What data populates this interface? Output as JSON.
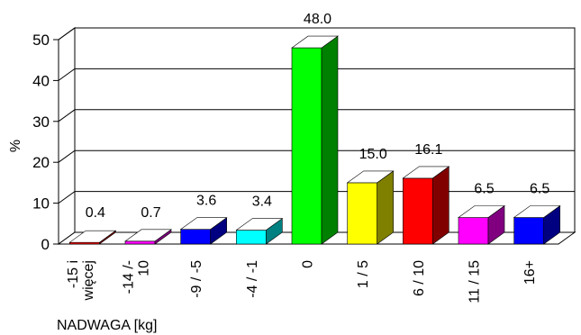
{
  "chart_data": {
    "type": "bar",
    "xlabel": "NADWAGA [kg]",
    "ylabel": "%",
    "ylim": [
      0,
      50
    ],
    "yticks": [
      "0",
      "10",
      "20",
      "30",
      "40",
      "50"
    ],
    "grid": true,
    "categories": [
      [
        "-15 i",
        "więcej"
      ],
      [
        "-14 /-",
        "10"
      ],
      [
        "-9 / -5"
      ],
      [
        "-4 / -1"
      ],
      [
        "0"
      ],
      [
        "1 / 5"
      ],
      [
        "6 / 10"
      ],
      [
        "11 / 15"
      ],
      [
        "16+"
      ]
    ],
    "values": [
      0.4,
      0.7,
      3.6,
      3.4,
      48.0,
      15.0,
      16.1,
      6.5,
      6.5
    ],
    "value_labels": [
      "0.4",
      "0.7",
      "3.6",
      "3.4",
      "48.0",
      "15.0",
      "16.1",
      "6.5",
      "6.5"
    ],
    "colors": [
      {
        "front": "#ff0000",
        "side": "#800000"
      },
      {
        "front": "#ff00ff",
        "side": "#800080"
      },
      {
        "front": "#0000ff",
        "side": "#000080"
      },
      {
        "front": "#00ffff",
        "side": "#008080"
      },
      {
        "front": "#00ff00",
        "side": "#008000"
      },
      {
        "front": "#ffff00",
        "side": "#808000"
      },
      {
        "front": "#ff0000",
        "side": "#800000"
      },
      {
        "front": "#ff00ff",
        "side": "#800080"
      },
      {
        "front": "#0000ff",
        "side": "#000080"
      }
    ]
  }
}
